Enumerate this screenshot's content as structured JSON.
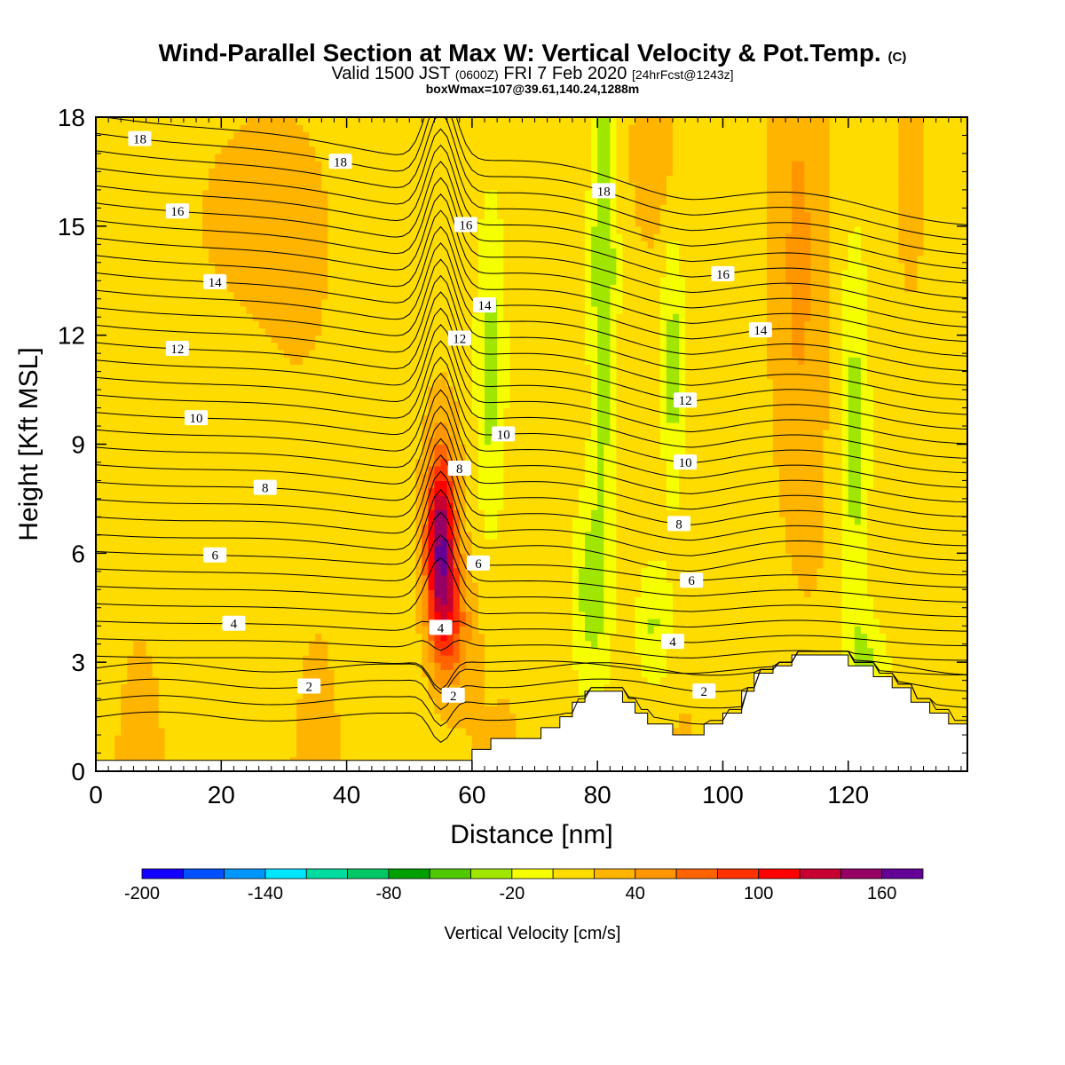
{
  "header": {
    "title": "Wind-Parallel Section at Max W: Vertical Velocity & Pot.Temp.",
    "copyright": "(C)",
    "valid_prefix": "Valid 1500 JST",
    "valid_utc": "(0600Z)",
    "valid_date": "FRI 7 Feb 2020",
    "forecast": "[24hrFcst@1243z]",
    "box_info": "boxWmax=107@39.61,140.24,1288m"
  },
  "chart_data": {
    "type": "heatmap",
    "xlabel": "Distance [nm]",
    "ylabel": "Height [Kft MSL]",
    "xlim": [
      0,
      139
    ],
    "ylim": [
      0,
      18
    ],
    "x_ticks": [
      "0",
      "20",
      "40",
      "60",
      "80",
      "100",
      "120"
    ],
    "y_ticks": [
      "0",
      "3",
      "6",
      "9",
      "12",
      "15",
      "18"
    ],
    "colorbar": {
      "label": "Vertical Velocity [cm/s]",
      "range": [
        -200,
        180
      ],
      "tick_labels": [
        "-200",
        "-140",
        "-80",
        "-20",
        "40",
        "100",
        "160"
      ],
      "colors": [
        "#1400ff",
        "#0050ff",
        "#0096ff",
        "#00e6ff",
        "#00dca0",
        "#00c864",
        "#00a000",
        "#50c800",
        "#a0e600",
        "#f5ff00",
        "#ffdc00",
        "#ffb400",
        "#ff9600",
        "#ff6400",
        "#ff3200",
        "#ff0000",
        "#c80032",
        "#960064",
        "#640096"
      ]
    },
    "vertical_velocity_features": [
      {
        "kind": "updraft",
        "x": 55,
        "y": 6.5,
        "max": 160
      },
      {
        "kind": "downdraft",
        "x": 81,
        "y": 14,
        "min": -60
      },
      {
        "kind": "downdraft",
        "x": 63,
        "y": 11,
        "min": -40
      },
      {
        "kind": "downdraft",
        "x": 121,
        "y": 9,
        "min": -50
      },
      {
        "kind": "updraft",
        "x": 112,
        "y": 14,
        "max": 40
      }
    ],
    "terrain_nm_kft": [
      [
        0,
        0.3
      ],
      [
        58,
        0.3
      ],
      [
        60,
        0.6
      ],
      [
        63,
        0.9
      ],
      [
        71,
        1.2
      ],
      [
        74,
        1.5
      ],
      [
        76,
        1.9
      ],
      [
        78,
        2.2
      ],
      [
        83,
        2.2
      ],
      [
        84,
        1.9
      ],
      [
        86,
        1.6
      ],
      [
        88,
        1.3
      ],
      [
        92,
        1.0
      ],
      [
        97,
        1.3
      ],
      [
        100,
        1.6
      ],
      [
        103,
        2.2
      ],
      [
        105,
        2.7
      ],
      [
        108,
        2.9
      ],
      [
        111,
        3.2
      ],
      [
        117,
        3.2
      ],
      [
        120,
        2.9
      ],
      [
        124,
        2.6
      ],
      [
        127,
        2.3
      ],
      [
        130,
        1.9
      ],
      [
        133,
        1.6
      ],
      [
        136,
        1.3
      ],
      [
        139,
        0.6
      ]
    ],
    "theta_contour_labels": [
      "2",
      "2",
      "2",
      "4",
      "4",
      "4",
      "6",
      "6",
      "6",
      "8",
      "8",
      "8",
      "10",
      "10",
      "10",
      "12",
      "12",
      "12",
      "14",
      "14",
      "14",
      "16",
      "16",
      "16",
      "18",
      "18",
      "18"
    ]
  }
}
